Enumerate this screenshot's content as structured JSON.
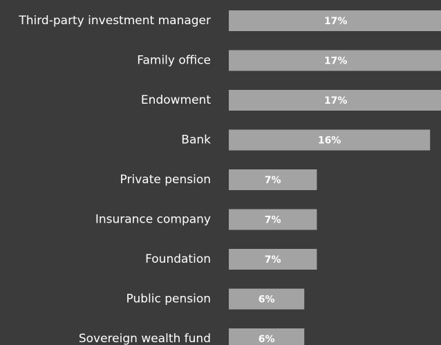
{
  "chart_data": {
    "type": "bar",
    "orientation": "horizontal",
    "categories": [
      "Third-party investment manager",
      "Family office",
      "Endowment",
      "Bank",
      "Private pension",
      "Insurance company",
      "Foundation",
      "Public pension",
      "Sovereign wealth fund"
    ],
    "values": [
      17,
      17,
      17,
      16,
      7,
      7,
      7,
      6,
      6
    ],
    "value_labels": [
      "17%",
      "17%",
      "17%",
      "16%",
      "7%",
      "7%",
      "7%",
      "6%",
      "6%"
    ],
    "color": "#a3a3a3"
  }
}
